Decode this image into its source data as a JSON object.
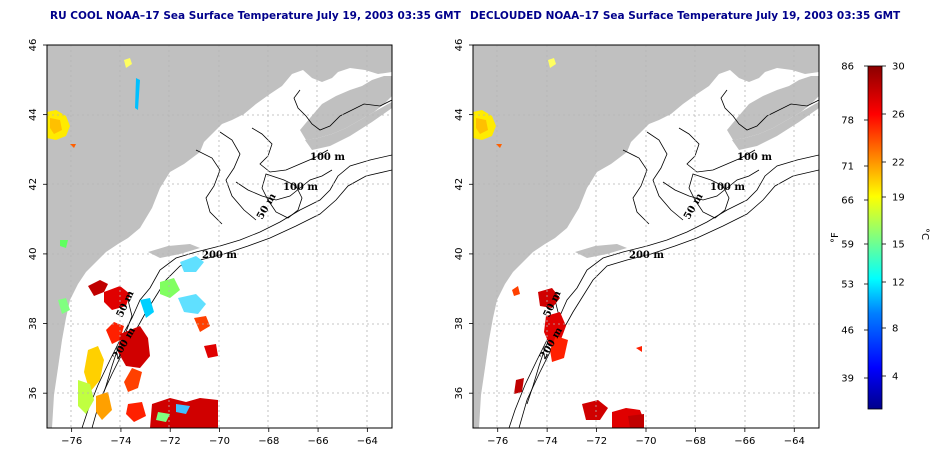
{
  "panels": [
    {
      "id": "left",
      "title": "RU COOL NOAA–17 Sea Surface Temperature July 19, 2003 03:35 GMT",
      "contour_labels": [
        "100 m",
        "100 m",
        "50 m",
        "200 m",
        "50 m",
        "200 m"
      ]
    },
    {
      "id": "right",
      "title": "DECLOUDED NOAA–17 Sea Surface Temperature July 19, 2003 03:35 GMT",
      "contour_labels": [
        "100 m",
        "100 m",
        "50 m",
        "200 m",
        "50 m",
        "200 m"
      ]
    }
  ],
  "axes": {
    "x_ticks": [
      "−76",
      "−74",
      "−72",
      "−70",
      "−68",
      "−66",
      "−64"
    ],
    "y_ticks": [
      "36",
      "38",
      "40",
      "42",
      "44",
      "46"
    ],
    "x_range": [
      -77,
      -63
    ],
    "y_range": [
      35,
      46
    ]
  },
  "colorbar": {
    "fahrenheit_unit": "°F",
    "celsius_unit": "°C",
    "fahrenheit_ticks": [
      "86",
      "78",
      "71",
      "66",
      "59",
      "53",
      "46",
      "39"
    ],
    "celsius_ticks": [
      "30",
      "26",
      "22",
      "19",
      "15",
      "12",
      "8",
      "4"
    ],
    "colors": [
      "#00008b",
      "#0000ff",
      "#0080ff",
      "#00ffff",
      "#80ff80",
      "#ffff00",
      "#ff8000",
      "#ff0000",
      "#8b0000"
    ]
  },
  "colors": {
    "land": "#c0c0c0",
    "ocean": "#ffffff",
    "title": "#00008b",
    "grid": "#b4b4b4"
  }
}
